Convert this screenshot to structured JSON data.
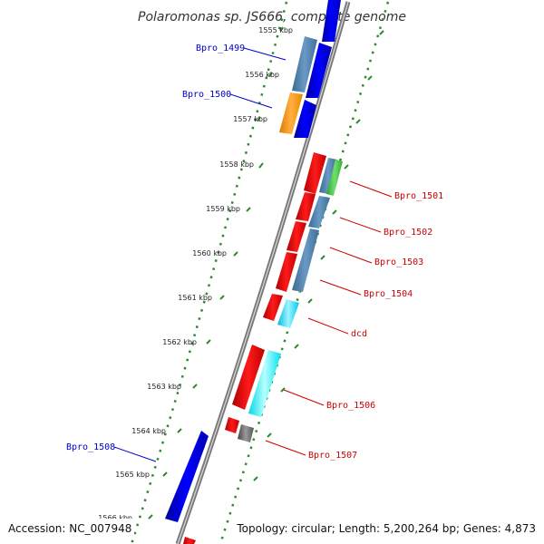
{
  "title": "Polaromonas sp. JS666, complete genome",
  "footer": {
    "accession": "Accession: NC_007948",
    "topology": "Topology: circular; Length: 5,200,264 bp; Genes: 4,873"
  },
  "colors": {
    "forward_label": "#0000cc",
    "reverse_label": "#cc0000",
    "ruler": "#2e8b2e",
    "backbone": "#888888"
  },
  "ruler_ticks": [
    "1555 kbp",
    "1556 kbp",
    "1557 kbp",
    "1558 kbp",
    "1559 kbp",
    "1560 kbp",
    "1561 kbp",
    "1562 kbp",
    "1563 kbp",
    "1564 kbp",
    "1565 kbp",
    "1566 kbp"
  ],
  "gene_labels": {
    "bpro_1499": "Bpro_1499",
    "bpro_1500": "Bpro_1500",
    "bpro_1501": "Bpro_1501",
    "bpro_1502": "Bpro_1502",
    "bpro_1503": "Bpro_1503",
    "bpro_1504": "Bpro_1504",
    "dcd": "dcd",
    "bpro_1506": "Bpro_1506",
    "bpro_1507": "Bpro_1507",
    "bpro_1508": "Bpro_1508"
  }
}
